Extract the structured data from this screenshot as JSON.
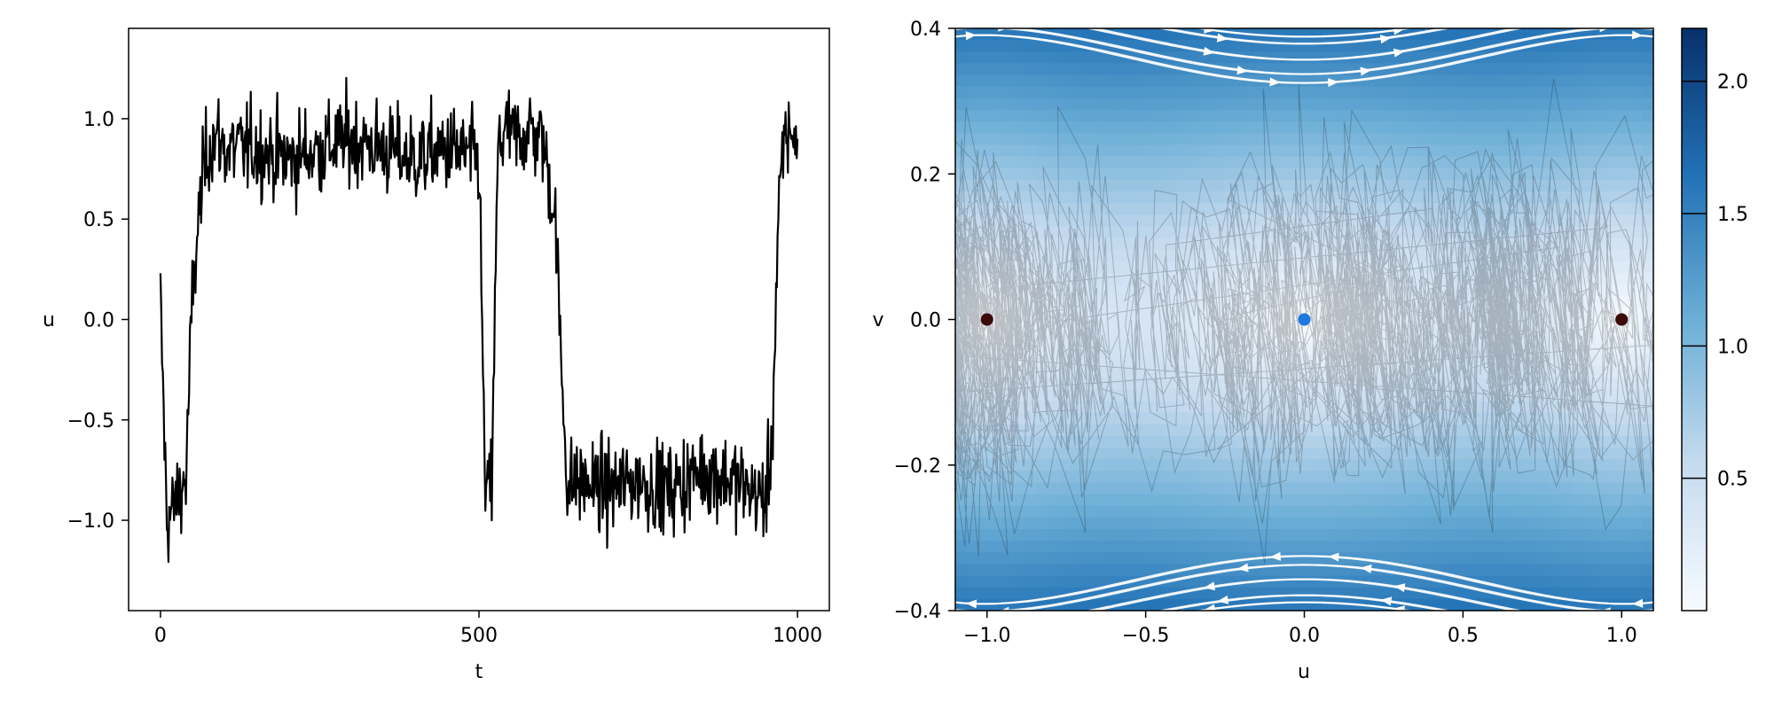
{
  "figure": {
    "background": "#ffffff"
  },
  "chart_data": [
    {
      "type": "line",
      "xlabel": "t",
      "ylabel": "u",
      "xlim": [
        -50,
        1050
      ],
      "ylim": [
        -1.45,
        1.45
      ],
      "xticks": [
        0,
        500,
        1000
      ],
      "xtick_labels": [
        "0",
        "500",
        "1000"
      ],
      "yticks": [
        -1.0,
        -0.5,
        0.0,
        0.5,
        1.0
      ],
      "ytick_labels": [
        "−1.0",
        "−0.5",
        "0.0",
        "0.5",
        "1.0"
      ],
      "grid": false,
      "line_color": "#000000",
      "series": [
        {
          "x": [
            0,
            10,
            20,
            30,
            40,
            50,
            60,
            70,
            80,
            90,
            100,
            150,
            200,
            250,
            300,
            350,
            400,
            450,
            500,
            510,
            520,
            530,
            540,
            560,
            580,
            600,
            620,
            630,
            640,
            650,
            700,
            750,
            800,
            850,
            900,
            950,
            960,
            970,
            980,
            990,
            1000
          ],
          "values": [
            0.08,
            -1.0,
            -0.95,
            -0.85,
            -0.8,
            0.1,
            0.5,
            0.8,
            0.9,
            0.9,
            0.85,
            0.85,
            0.8,
            0.85,
            0.9,
            0.85,
            0.8,
            0.85,
            0.8,
            -0.9,
            -0.8,
            0.85,
            0.95,
            0.9,
            0.95,
            0.9,
            0.5,
            -0.3,
            -0.85,
            -0.8,
            -0.85,
            -0.8,
            -0.85,
            -0.75,
            -0.8,
            -0.9,
            -0.6,
            0.5,
            0.9,
            0.95,
            0.9
          ]
        }
      ]
    },
    {
      "type": "heatmap",
      "xlabel": "u",
      "ylabel": "v",
      "xlim": [
        -1.1,
        1.1
      ],
      "ylim": [
        -0.4,
        0.4
      ],
      "xticks": [
        -1.0,
        -0.5,
        0.0,
        0.5,
        1.0
      ],
      "xtick_labels": [
        "−1.0",
        "−0.5",
        "0.0",
        "0.5",
        "1.0"
      ],
      "yticks": [
        -0.4,
        -0.2,
        0.0,
        0.2,
        0.4
      ],
      "ytick_labels": [
        "−0.4",
        "−0.2",
        "0.0",
        "0.2",
        "0.4"
      ],
      "colormap": {
        "name": "Blues",
        "low": "#f7fbff",
        "high": "#08306b"
      },
      "colorbar": {
        "range": [
          0,
          2.2
        ],
        "ticks": [
          0.5,
          1.0,
          1.5,
          2.0
        ],
        "tick_labels": [
          "0.5",
          "1.0",
          "1.5",
          "2.0"
        ]
      },
      "streamline_color": "#ffffff",
      "trajectory_color": "#000000",
      "markers": [
        {
          "u": -1.0,
          "v": 0.0,
          "color": "#3b0a0a"
        },
        {
          "u": 0.0,
          "v": 0.0,
          "color": "#1f78e0"
        },
        {
          "u": 1.0,
          "v": 0.0,
          "color": "#3b0a0a"
        }
      ]
    }
  ]
}
